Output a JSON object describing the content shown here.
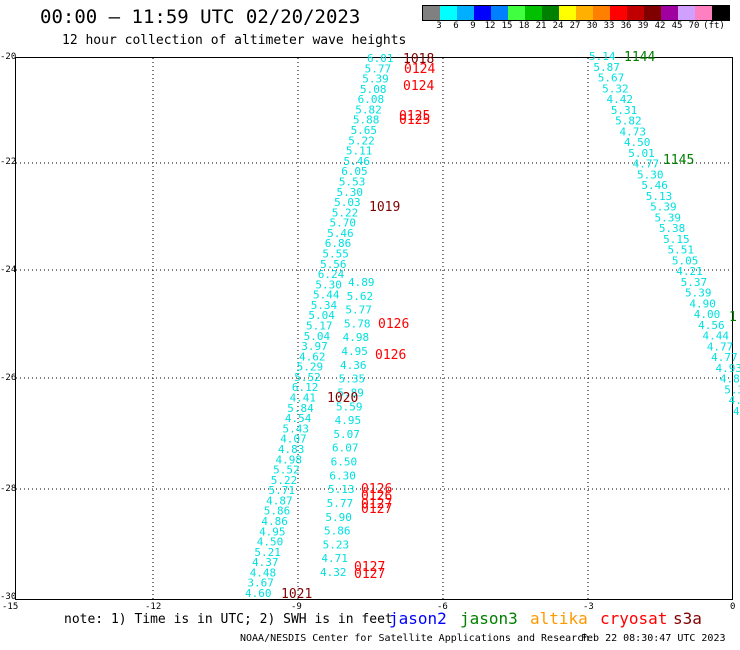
{
  "header": {
    "title": "00:00 – 11:59 UTC 02/20/2023",
    "subtitle": "12 hour collection of altimeter wave heights"
  },
  "legend": {
    "colors": [
      "#808080",
      "#00ffff",
      "#00b0ff",
      "#0000ff",
      "#0080ff",
      "#40ff40",
      "#00c000",
      "#008000",
      "#ffff00",
      "#ffb000",
      "#ff8000",
      "#ff0000",
      "#c00000",
      "#800000",
      "#a000a0",
      "#d0a0ff",
      "#ff80c0",
      "#000000"
    ],
    "labels": [
      "3",
      "6",
      "9",
      "12",
      "15",
      "18",
      "21",
      "24",
      "27",
      "30",
      "33",
      "36",
      "39",
      "42",
      "45",
      "70",
      "(ft)"
    ]
  },
  "axes": {
    "lat_labels": [
      "-20",
      "-22",
      "-24",
      "-26",
      "-28",
      "-30"
    ],
    "lon_labels": [
      "-15",
      "-12",
      "-9",
      "-6",
      "-3",
      "0"
    ]
  },
  "tracks": {
    "track_a_values": [
      "6.01",
      "5.77",
      "5.39",
      "5.08",
      "6.08",
      "5.82",
      "5.88",
      "5.65",
      "5.22",
      "5.11",
      "5.46",
      "6.05",
      "5.53",
      "5.30",
      "5.03",
      "5.22",
      "5.70",
      "5.46",
      "6.86",
      "5.55",
      "5.56",
      "6.24",
      "5.30",
      "5.44",
      "5.34",
      "5.04",
      "5.17",
      "5.04",
      "3.97",
      "4.62",
      "5.29",
      "5.52",
      "6.12",
      "4.41",
      "5.84",
      "4.54",
      "5.43",
      "4.07",
      "4.83",
      "4.98",
      "5.52",
      "5.22",
      "5.71",
      "4.87",
      "5.86",
      "4.86",
      "4.95",
      "4.50",
      "5.21",
      "4.37",
      "4.48",
      "3.67",
      "4.60"
    ],
    "track_a_mid_values": [
      "4.89",
      "5.62",
      "5.77",
      "5.78",
      "4.98",
      "4.95",
      "4.36",
      "5.35",
      "5.89",
      "5.59",
      "4.95",
      "5.07",
      "6.07",
      "6.50",
      "6.30",
      "5.13",
      "5.77",
      "5.90",
      "5.86",
      "5.23",
      "4.71",
      "4.32"
    ],
    "track_b_values": [
      "5.14",
      "5.87",
      "5.67",
      "5.32",
      "4.42",
      "5.31",
      "5.82",
      "4.73",
      "4.50",
      "5.01",
      "4.77",
      "5.30",
      "5.46",
      "5.13",
      "5.39",
      "5.39",
      "5.38",
      "5.15",
      "5.51",
      "5.05",
      "4.21",
      "5.37",
      "5.39",
      "4.90",
      "4.00",
      "4.56",
      "4.44",
      "4.77",
      "4.77",
      "4.93",
      "4.88",
      "5.3",
      "4.1",
      "4.4"
    ],
    "time_labels_jason3": [
      "1144",
      "1145",
      "1"
    ],
    "time_labels_cryosat": [
      "0124",
      "0124",
      "0125",
      "0125",
      "0126",
      "0126",
      "0126",
      "0126",
      "0127",
      "0127",
      "0127",
      "0127"
    ],
    "time_labels_s3a": [
      "1018",
      "1019",
      "1020",
      "1021"
    ]
  },
  "notes": {
    "note_text": "note: 1) Time is in UTC; 2) SWH is in feet",
    "sat_jason2": "jason2",
    "sat_jason3": "jason3",
    "sat_altika": "altika",
    "sat_cryosat": "cryosat",
    "sat_s3a": "s3a",
    "footer_left": "NOAA/NESDIS Center for Satellite Applications and Research",
    "footer_right": "Feb 22 08:30:47 UTC 2023"
  },
  "colors": {
    "swh_color": "#00e0e0",
    "jason2": "#0000ff",
    "jason3": "#008000",
    "altika": "#ff9900",
    "cryosat": "#ff0000",
    "s3a": "#800000"
  }
}
